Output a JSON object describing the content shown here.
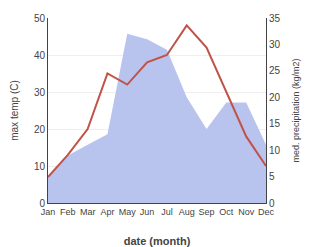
{
  "chart_data": {
    "type": "line",
    "xlabel": "date (month)",
    "ylabel": "max temp (C)",
    "y2label": "med. precipitation (kg/m2)",
    "categories": [
      "Jan",
      "Feb",
      "Mar",
      "Apr",
      "May",
      "Jun",
      "Jul",
      "Aug",
      "Sep",
      "Oct",
      "Nov",
      "Dec"
    ],
    "series": [
      {
        "type": "area",
        "axis": "y2",
        "color": "#b8c4ee",
        "values": [
          5,
          9,
          11,
          13,
          32,
          31,
          29,
          20,
          14,
          19,
          19,
          11
        ]
      },
      {
        "type": "line",
        "color": "#c0524a",
        "values": [
          7,
          13,
          20,
          35,
          32,
          38,
          40,
          48,
          42,
          30,
          18,
          10
        ]
      }
    ],
    "ylim": [
      0,
      50
    ],
    "yticks": [
      0,
      10,
      20,
      30,
      40,
      50
    ],
    "y2lim": [
      0,
      35
    ],
    "y2ticks": [
      0,
      5,
      10,
      15,
      20,
      25,
      30,
      35
    ],
    "grid": true
  }
}
